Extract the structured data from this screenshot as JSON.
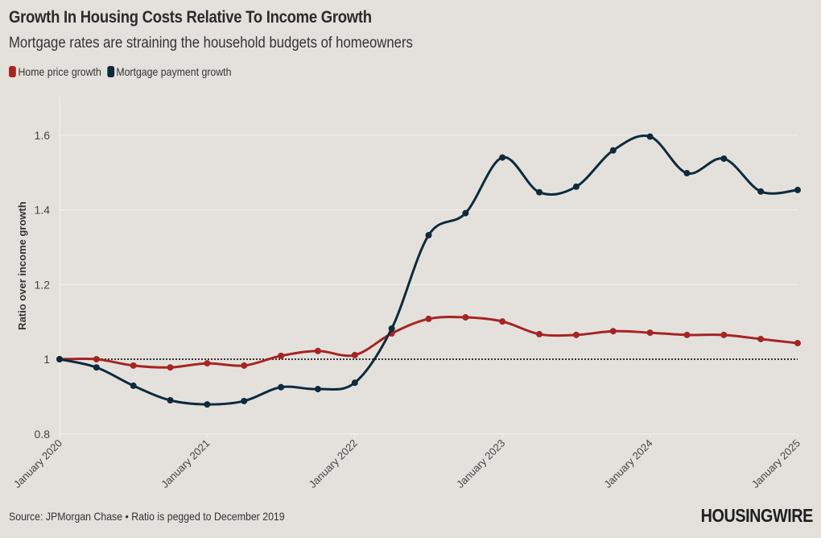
{
  "header": {
    "title": "Growth In Housing Costs Relative To Income Growth",
    "subtitle": "Mortgage rates are straining the household budgets of homeowners"
  },
  "legend": [
    {
      "label": "Home price growth",
      "color": "#a52523"
    },
    {
      "label": "Mortgage payment growth",
      "color": "#0d2b3c"
    }
  ],
  "footer": {
    "source": "Source: JPMorgan Chase • Ratio is pegged to December 2019",
    "logo": "HOUSINGWIRE"
  },
  "chart_data": {
    "type": "line",
    "title": "Growth In Housing Costs Relative To Income Growth",
    "subtitle": "Mortgage rates are straining the household budgets of homeowners",
    "xlabel": "",
    "ylabel": "Ratio over income growth",
    "ylim": [
      0.8,
      1.7
    ],
    "yticks": [
      0.8,
      1,
      1.2,
      1.4,
      1.6
    ],
    "ytick_labels": [
      "0.8",
      "1",
      "1.2",
      "1.4",
      "1.6"
    ],
    "xlim": [
      2020.0,
      2025.0
    ],
    "xticks": [
      2020,
      2021,
      2022,
      2023,
      2024,
      2025
    ],
    "xtick_labels": [
      "January 2020",
      "January 2021",
      "January 2022",
      "January 2023",
      "January 2024",
      "January 2025"
    ],
    "reference_line": {
      "y": 1,
      "style": "dotted"
    },
    "grid": "horizontal",
    "legend_position": "top-left",
    "x": [
      2020.0,
      2020.25,
      2020.5,
      2020.75,
      2021.0,
      2021.25,
      2021.5,
      2021.75,
      2022.0,
      2022.25,
      2022.5,
      2022.75,
      2023.0,
      2023.25,
      2023.5,
      2023.75,
      2024.0,
      2024.25,
      2024.5,
      2024.75,
      2025.0
    ],
    "series": [
      {
        "name": "Home price growth",
        "color": "#a52523",
        "values": [
          1.0,
          1.0,
          0.983,
          0.978,
          0.989,
          0.983,
          1.009,
          1.022,
          1.011,
          1.069,
          1.108,
          1.112,
          1.101,
          1.067,
          1.065,
          1.075,
          1.071,
          1.065,
          1.065,
          1.054,
          1.043
        ]
      },
      {
        "name": "Mortgage payment growth",
        "color": "#0d2b3c",
        "values": [
          1.0,
          0.978,
          0.929,
          0.89,
          0.879,
          0.888,
          0.925,
          0.92,
          0.937,
          1.082,
          1.332,
          1.391,
          1.54,
          1.447,
          1.462,
          1.559,
          1.596,
          1.498,
          1.537,
          1.449,
          1.453
        ]
      }
    ]
  }
}
